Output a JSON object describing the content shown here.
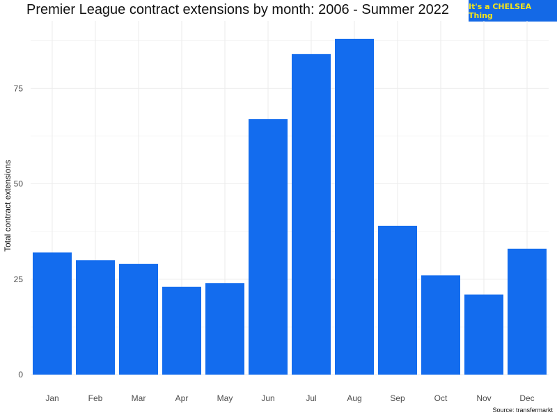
{
  "header": {
    "title": "Premier League contract extensions by month: 2006 - Summer 2022",
    "badge_text": "It's a CHELSEA Thing",
    "badge_bg": "#1469e6",
    "badge_fg": "#f5e51a"
  },
  "footer": {
    "source": "Source: transfermarkt"
  },
  "colors": {
    "bar": "#136cee",
    "grid": "#ebebeb"
  },
  "chart_data": {
    "type": "bar",
    "title": "Premier League contract extensions by month: 2006 - Summer 2022",
    "xlabel": "",
    "ylabel": "Total contract extensions",
    "categories": [
      "Jan",
      "Feb",
      "Mar",
      "Apr",
      "May",
      "Jun",
      "Jul",
      "Aug",
      "Sep",
      "Oct",
      "Nov",
      "Dec"
    ],
    "values": [
      32,
      30,
      29,
      23,
      24,
      67,
      84,
      88,
      39,
      26,
      21,
      33
    ],
    "ylim": [
      0,
      90
    ],
    "yticks": [
      0,
      25,
      50,
      75
    ],
    "grid": true,
    "legend": "none"
  }
}
